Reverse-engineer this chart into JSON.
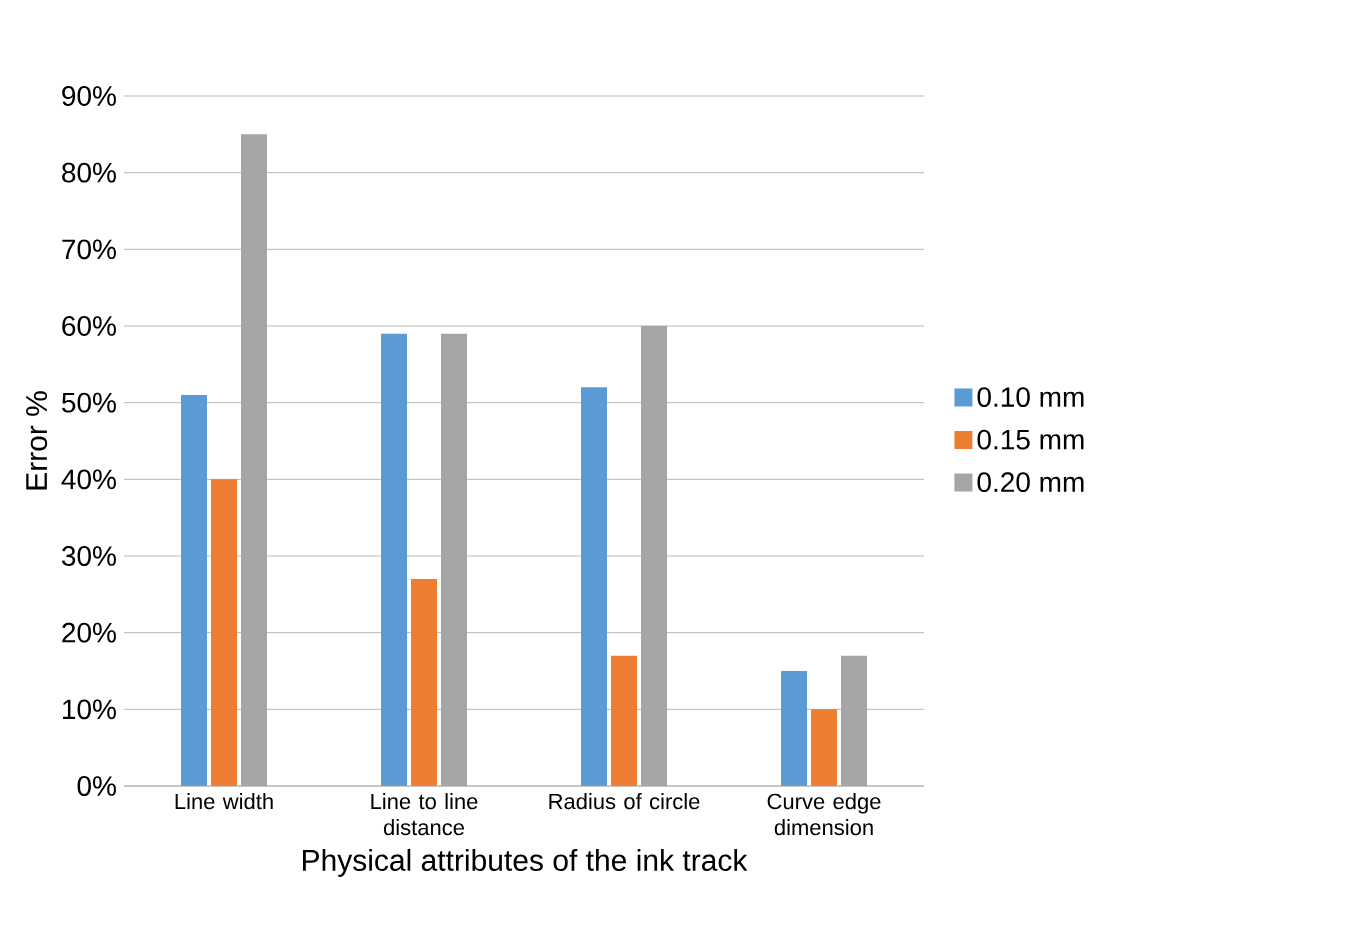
{
  "chart_data": {
    "type": "bar",
    "xlabel": "Physical attributes of the ink track",
    "ylabel": "Error %",
    "categories": [
      "Line width",
      "Line to line distance",
      "Radius of circle",
      "Curve edge dimension"
    ],
    "series": [
      {
        "name": "0.10 mm",
        "color": "#5b9bd5",
        "values": [
          51,
          59,
          52,
          15
        ]
      },
      {
        "name": "0.15 mm",
        "color": "#ed7d31",
        "values": [
          40,
          27,
          17,
          10
        ]
      },
      {
        "name": "0.20 mm",
        "color": "#a5a5a5",
        "values": [
          85,
          59,
          60,
          17
        ]
      }
    ],
    "ylim": [
      0,
      90
    ],
    "yticks": [
      {
        "value": 0,
        "label": "0%"
      },
      {
        "value": 10,
        "label": "10%"
      },
      {
        "value": 20,
        "label": "20%"
      },
      {
        "value": 30,
        "label": "30%"
      },
      {
        "value": 40,
        "label": "40%"
      },
      {
        "value": 50,
        "label": "50%"
      },
      {
        "value": 60,
        "label": "60%"
      },
      {
        "value": 70,
        "label": "70%"
      },
      {
        "value": 80,
        "label": "80%"
      },
      {
        "value": 90,
        "label": "90%"
      }
    ],
    "grid": "y",
    "legend": "right"
  }
}
